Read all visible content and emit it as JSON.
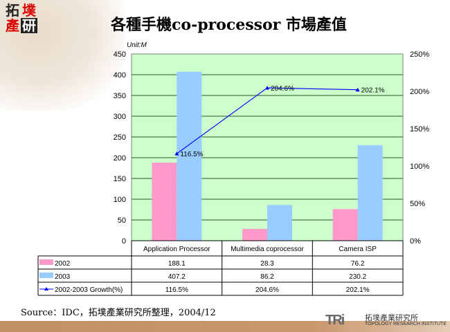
{
  "logo_text": [
    "拓",
    "墣",
    "產",
    "研"
  ],
  "title": "各種手機co-processor 市場產值",
  "source": "Source：IDC，拓墣產業研究所整理，2004/12",
  "footer_logo": {
    "mark": "TRi",
    "name_zh": "拓墣產業研究所",
    "name_en": "TOPOLOGY RESEARCH INSTITUTE"
  },
  "colors": {
    "2002": "#ff99cc",
    "2003": "#99ccff",
    "growth": "#0000ff",
    "plot_bg": "#ccffcc"
  },
  "chart_data": {
    "type": "bar+line",
    "unit_label": "Unit:M",
    "categories": [
      "Application Processor",
      "Multimedia coprocessor",
      "Camera ISP"
    ],
    "series": [
      {
        "name": "2002",
        "type": "bar",
        "axis": "left",
        "values": [
          188.1,
          28.3,
          76.2
        ],
        "labels": [
          "188.1",
          "28.3",
          "76.2"
        ]
      },
      {
        "name": "2003",
        "type": "bar",
        "axis": "left",
        "values": [
          407.2,
          86.2,
          230.2
        ],
        "labels": [
          "407.2",
          "86.2",
          "230.2"
        ]
      },
      {
        "name": "2002-2003 Growth(%)",
        "type": "line",
        "axis": "right",
        "values": [
          116.5,
          204.6,
          202.1
        ],
        "labels": [
          "116.5%",
          "204.6%",
          "202.1%"
        ]
      }
    ],
    "y_left": {
      "range": [
        0,
        450
      ],
      "ticks": [
        "0",
        "50",
        "100",
        "150",
        "200",
        "250",
        "300",
        "350",
        "400",
        "450"
      ]
    },
    "y_right": {
      "range": [
        0,
        250
      ],
      "ticks": [
        "0%",
        "50%",
        "100%",
        "150%",
        "200%",
        "250%"
      ]
    },
    "grid": true,
    "legend": "data-table"
  }
}
